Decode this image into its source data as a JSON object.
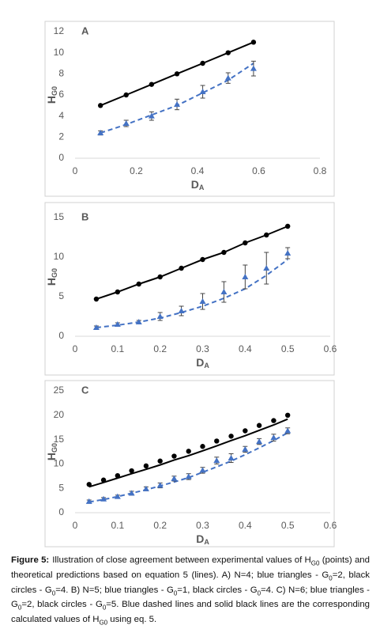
{
  "chart_data": [
    {
      "type": "scatter",
      "panel": "A",
      "y_label": "H",
      "y_label_sub": "G0",
      "x_label": "D",
      "x_label_sub": "A",
      "xlim": [
        0,
        0.8
      ],
      "xticks": [
        0,
        0.2,
        0.4,
        0.6,
        0.8
      ],
      "ylim": [
        0,
        12
      ],
      "yticks": [
        0,
        2,
        4,
        6,
        8,
        10,
        12
      ],
      "grid": false,
      "x": [
        0.083,
        0.167,
        0.25,
        0.333,
        0.417,
        0.5,
        0.583
      ],
      "series": [
        {
          "color": "#000000",
          "marker": "circle",
          "values": [
            5,
            6,
            7,
            8,
            9,
            10,
            11
          ]
        },
        {
          "color": "#4472c4",
          "marker": "triangle",
          "values": [
            2.4,
            3.3,
            4.0,
            5.1,
            6.3,
            7.6,
            8.5
          ],
          "errors": [
            0.2,
            0.3,
            0.4,
            0.5,
            0.6,
            0.5,
            0.7
          ]
        },
        {
          "color": "#000000",
          "line": "solid",
          "values": [
            5,
            6,
            7,
            8,
            9,
            10,
            11
          ]
        },
        {
          "color": "#4472c4",
          "line": "dashed",
          "values": [
            2.4,
            3.2,
            4.1,
            5.0,
            6.2,
            7.4,
            9.0
          ]
        }
      ]
    },
    {
      "type": "scatter",
      "panel": "B",
      "y_label": "H",
      "y_label_sub": "G0",
      "x_label": "D",
      "x_label_sub": "A",
      "xlim": [
        0,
        0.6
      ],
      "xticks": [
        0,
        0.1,
        0.2,
        0.3,
        0.4,
        0.5,
        0.6
      ],
      "ylim": [
        0,
        15
      ],
      "yticks": [
        0,
        5,
        10,
        15
      ],
      "grid": false,
      "x": [
        0.05,
        0.1,
        0.15,
        0.2,
        0.25,
        0.3,
        0.35,
        0.4,
        0.45,
        0.5
      ],
      "series": [
        {
          "color": "#000000",
          "marker": "circle",
          "values": [
            4.7,
            5.6,
            6.6,
            7.5,
            8.6,
            9.7,
            10.6,
            11.8,
            12.8,
            13.9
          ]
        },
        {
          "color": "#4472c4",
          "marker": "triangle",
          "values": [
            1.1,
            1.5,
            1.8,
            2.5,
            3.2,
            4.4,
            5.6,
            7.5,
            8.6,
            10.5
          ],
          "errors": [
            0.2,
            0.2,
            0.2,
            0.5,
            0.6,
            1.0,
            1.3,
            1.5,
            2.0,
            0.7
          ]
        },
        {
          "color": "#000000",
          "line": "solid",
          "values": [
            4.7,
            5.6,
            6.6,
            7.5,
            8.6,
            9.7,
            10.6,
            11.8,
            12.8,
            13.9
          ]
        },
        {
          "color": "#4472c4",
          "line": "dashed",
          "values": [
            1.1,
            1.4,
            1.8,
            2.3,
            3.0,
            3.8,
            4.8,
            6.0,
            7.7,
            9.7
          ]
        }
      ]
    },
    {
      "type": "scatter",
      "panel": "C",
      "y_label": "H",
      "y_label_sub": "G0",
      "x_label": "D",
      "x_label_sub": "A",
      "xlim": [
        0,
        0.6
      ],
      "xticks": [
        0,
        0.1,
        0.2,
        0.3,
        0.4,
        0.5,
        0.6
      ],
      "ylim": [
        0,
        25
      ],
      "yticks": [
        0,
        5,
        10,
        15,
        20,
        25
      ],
      "grid": false,
      "x": [
        0.033,
        0.067,
        0.1,
        0.133,
        0.167,
        0.2,
        0.233,
        0.267,
        0.3,
        0.333,
        0.367,
        0.4,
        0.433,
        0.467,
        0.5
      ],
      "series": [
        {
          "color": "#000000",
          "marker": "circle",
          "values": [
            5.8,
            6.7,
            7.6,
            8.6,
            9.6,
            10.6,
            11.6,
            12.6,
            13.6,
            14.7,
            15.7,
            16.8,
            17.9,
            18.9,
            20.0
          ]
        },
        {
          "color": "#4472c4",
          "marker": "triangle",
          "values": [
            2.3,
            2.8,
            3.3,
            4.0,
            4.9,
            5.6,
            7.0,
            7.4,
            8.7,
            10.7,
            11.2,
            13.0,
            14.6,
            15.4,
            16.8
          ],
          "errors": [
            0.3,
            0.3,
            0.3,
            0.4,
            0.4,
            0.5,
            0.5,
            0.6,
            0.6,
            0.7,
            0.9,
            0.6,
            0.6,
            0.7,
            0.6
          ]
        },
        {
          "color": "#000000",
          "line": "solid",
          "values": [
            5.3,
            6.2,
            7.1,
            8.0,
            8.9,
            9.8,
            10.8,
            11.7,
            12.7,
            13.7,
            14.8,
            15.8,
            16.9,
            18.0,
            19.2
          ]
        },
        {
          "color": "#4472c4",
          "line": "dashed",
          "values": [
            2.2,
            2.7,
            3.3,
            4.0,
            4.7,
            5.5,
            6.3,
            7.2,
            8.3,
            9.4,
            10.6,
            11.9,
            13.3,
            14.8,
            16.4
          ]
        }
      ]
    }
  ],
  "caption": {
    "label": "Figure 5:",
    "runs": [
      "Illustration of close agreement between experimental values of H",
      "G0",
      " (points) and theoretical predictions based on equation 5 (lines). A) N=4; blue triangles - G",
      "0",
      "=2, black circles - G",
      "0",
      "=4. B) N=5; blue triangles - G",
      "0",
      "=1, black circles - G",
      "0",
      "=4. C) N=6; blue triangles - G",
      "0",
      "=2, black circles - G",
      "0",
      "=5. Blue dashed lines and solid black lines are the corresponding calculated values of H",
      "G0",
      " using eq. 5."
    ]
  }
}
